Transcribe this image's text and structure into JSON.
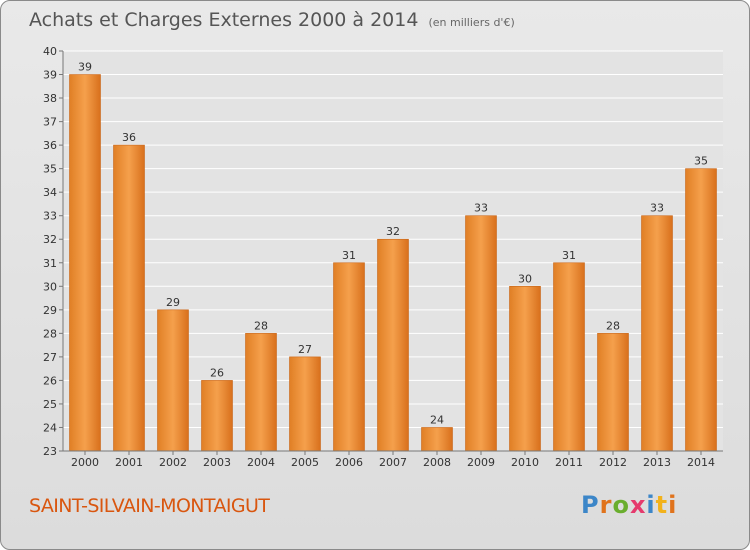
{
  "header": {
    "title": "Achats et Charges Externes 2000 à 2014",
    "unit": "(en milliers d'€)"
  },
  "footer": {
    "place": "SAINT-SILVAIN-MONTAIGUT",
    "logo_letters": [
      "P",
      "r",
      "o",
      "x",
      "i",
      "t",
      "i"
    ],
    "logo_colors": [
      "#3c86c8",
      "#e0731c",
      "#6aae2e",
      "#e53a6d",
      "#3c86c8",
      "#f2b21b",
      "#e0731c"
    ]
  },
  "chart_data": {
    "type": "bar",
    "title": "Achats et Charges Externes 2000 à 2014",
    "subtitle": "(en milliers d'€)",
    "categories": [
      "2000",
      "2001",
      "2002",
      "2003",
      "2004",
      "2005",
      "2006",
      "2007",
      "2008",
      "2009",
      "2010",
      "2011",
      "2012",
      "2013",
      "2014"
    ],
    "values": [
      39,
      36,
      29,
      26,
      28,
      27,
      31,
      32,
      24,
      33,
      30,
      31,
      28,
      33,
      35
    ],
    "ylim": [
      23,
      40
    ],
    "yticks": [
      23,
      24,
      25,
      26,
      27,
      28,
      29,
      30,
      31,
      32,
      33,
      34,
      35,
      36,
      37,
      38,
      39,
      40
    ],
    "grid": true,
    "bar_color": "#f0913a"
  }
}
